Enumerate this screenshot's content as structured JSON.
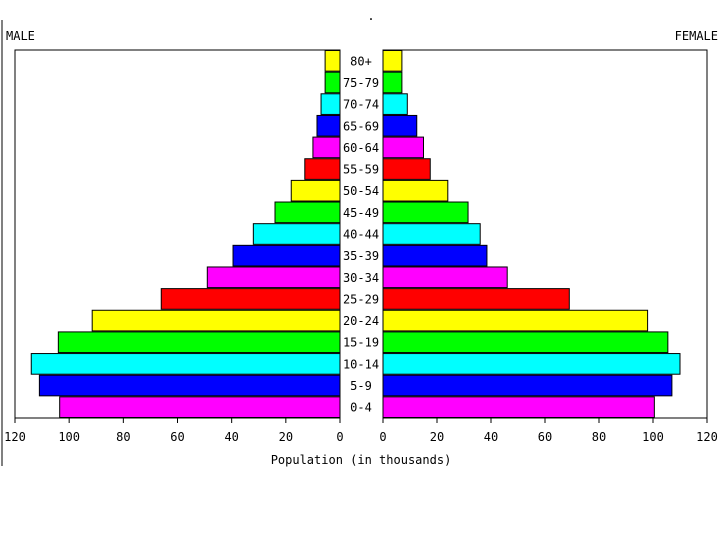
{
  "chart_data": {
    "type": "bar",
    "orientation": "horizontal-population-pyramid",
    "dot_label": ".",
    "left_label": "MALE",
    "right_label": "FEMALE",
    "xlabel": "Population (in thousands)",
    "xlim": [
      0,
      120
    ],
    "ticks": [
      "120",
      "100",
      "80",
      "60",
      "40",
      "20",
      "0"
    ],
    "right_ticks": [
      "0",
      "20",
      "40",
      "60",
      "80",
      "100",
      "120"
    ],
    "categories": [
      "80+",
      "75-79",
      "70-74",
      "65-69",
      "60-64",
      "55-59",
      "50-54",
      "45-49",
      "40-44",
      "35-39",
      "30-34",
      "25-29",
      "20-24",
      "15-19",
      "10-14",
      "5-9",
      "0-4"
    ],
    "series": [
      {
        "name": "MALE",
        "values": [
          5.5,
          5.5,
          7,
          8.5,
          10,
          13,
          18,
          24,
          32,
          39.5,
          49,
          66,
          91.5,
          104,
          114,
          111,
          103.5
        ]
      },
      {
        "name": "FEMALE",
        "values": [
          7,
          7,
          9,
          12.5,
          15,
          17.5,
          24,
          31.5,
          36,
          38.5,
          46,
          69,
          98,
          105.5,
          110,
          107,
          100.5
        ]
      }
    ],
    "bar_colors": [
      "#ffff00",
      "#00ff00",
      "#00ffff",
      "#0000ff",
      "#ff00ff",
      "#ff0000"
    ],
    "grid": false
  }
}
